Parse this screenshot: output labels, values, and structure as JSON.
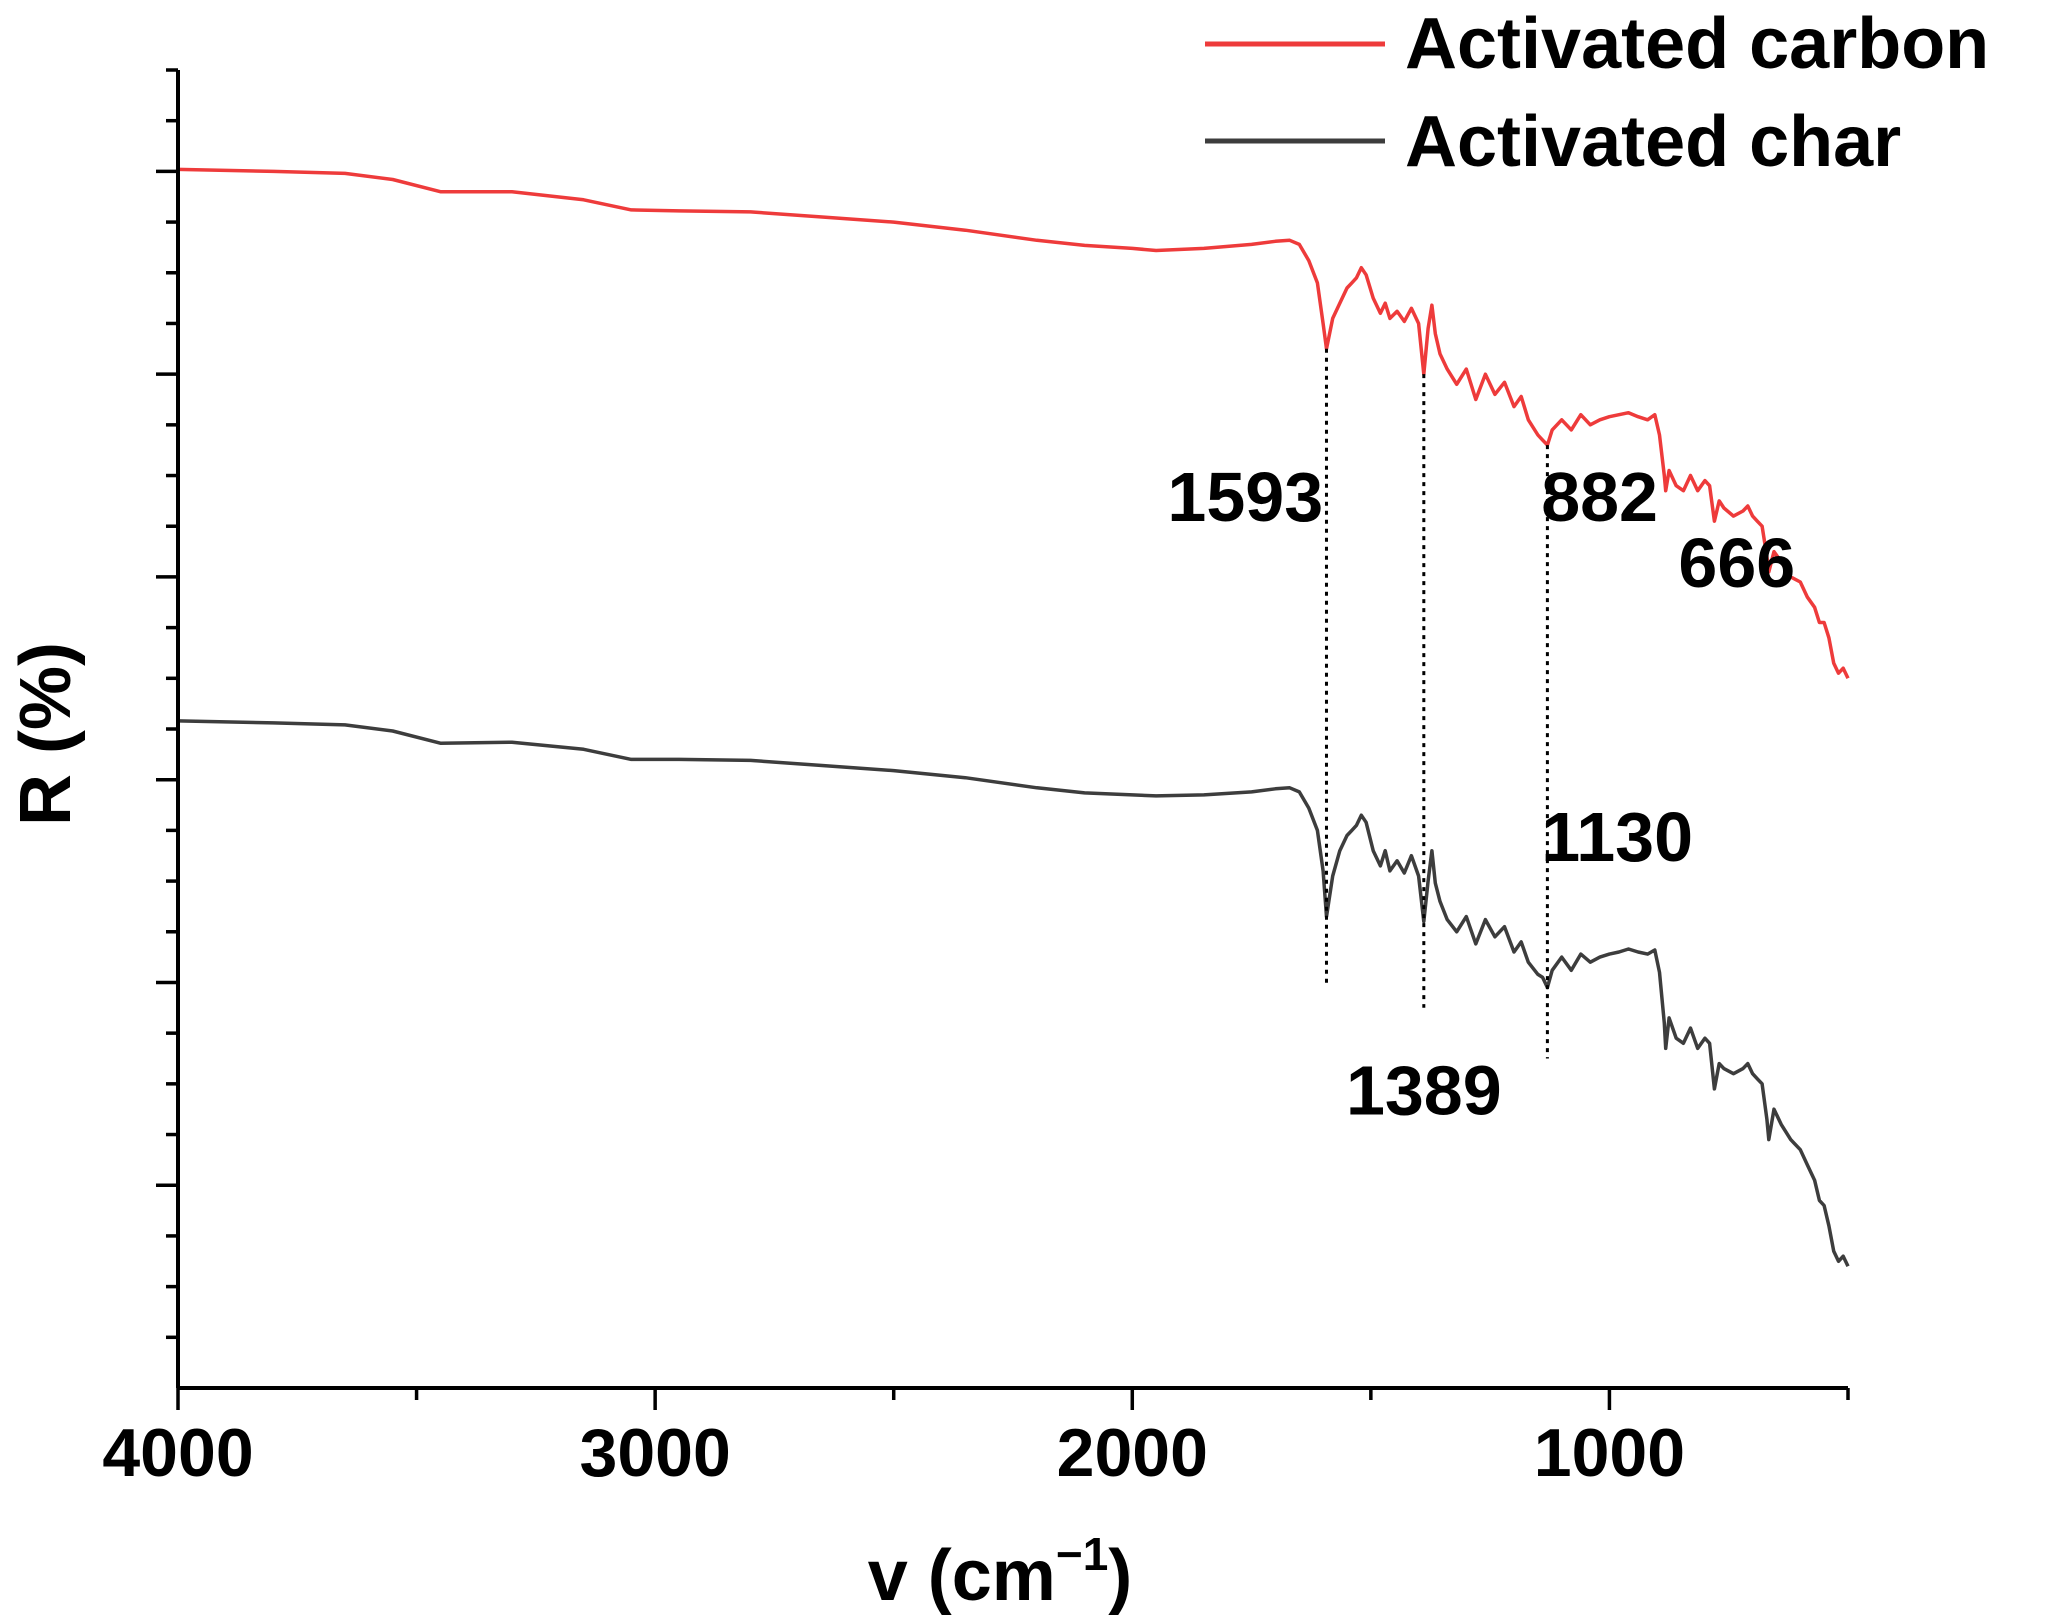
{
  "chart_data": {
    "type": "line",
    "title": "",
    "xlabel": "v (cm",
    "xlabel_sup": "−1",
    "xlabel_close": ")",
    "ylabel": "R (%)",
    "xlim": [
      4000,
      500
    ],
    "ylim": [
      0,
      13
    ],
    "xticks": [
      4000,
      3000,
      2000,
      1000
    ],
    "y_tick_labels_visible": false,
    "grid": false,
    "legend": "top-right",
    "series": [
      {
        "name": "Activated carbon",
        "color": "#ee3b3b",
        "x": [
          4000,
          3800,
          3650,
          3550,
          3450,
          3300,
          3150,
          3050,
          2950,
          2800,
          2650,
          2500,
          2350,
          2200,
          2100,
          2000,
          1950,
          1850,
          1750,
          1700,
          1670,
          1650,
          1630,
          1612,
          1600,
          1593,
          1580,
          1565,
          1550,
          1540,
          1530,
          1520,
          1510,
          1495,
          1480,
          1470,
          1460,
          1445,
          1430,
          1415,
          1400,
          1389,
          1380,
          1372,
          1365,
          1355,
          1340,
          1320,
          1300,
          1280,
          1260,
          1240,
          1220,
          1200,
          1185,
          1170,
          1150,
          1140,
          1130,
          1120,
          1100,
          1080,
          1060,
          1040,
          1020,
          1000,
          980,
          960,
          940,
          920,
          905,
          895,
          885,
          882,
          875,
          860,
          845,
          830,
          815,
          800,
          790,
          780,
          770,
          760,
          740,
          720,
          710,
          700,
          690,
          680,
          670,
          666,
          655,
          640,
          620,
          600,
          585,
          570,
          560,
          550,
          540,
          530,
          520,
          510,
          500
        ],
        "y": [
          12.02,
          12.0,
          11.98,
          11.92,
          11.8,
          11.8,
          11.72,
          11.62,
          11.61,
          11.6,
          11.55,
          11.5,
          11.42,
          11.32,
          11.27,
          11.24,
          11.22,
          11.24,
          11.28,
          11.31,
          11.32,
          11.28,
          11.12,
          10.9,
          10.5,
          10.25,
          10.55,
          10.7,
          10.85,
          10.9,
          10.95,
          11.05,
          10.98,
          10.75,
          10.6,
          10.7,
          10.55,
          10.62,
          10.52,
          10.65,
          10.5,
          10.0,
          10.45,
          10.68,
          10.4,
          10.2,
          10.05,
          9.9,
          10.05,
          9.75,
          10.0,
          9.8,
          9.92,
          9.68,
          9.78,
          9.55,
          9.4,
          9.35,
          9.3,
          9.45,
          9.55,
          9.45,
          9.6,
          9.5,
          9.55,
          9.58,
          9.6,
          9.62,
          9.58,
          9.55,
          9.6,
          9.4,
          9.0,
          8.85,
          9.05,
          8.9,
          8.85,
          9.0,
          8.85,
          8.95,
          8.9,
          8.55,
          8.75,
          8.68,
          8.6,
          8.65,
          8.7,
          8.6,
          8.55,
          8.5,
          8.2,
          8.05,
          8.25,
          8.15,
          8.0,
          7.95,
          7.8,
          7.7,
          7.55,
          7.55,
          7.4,
          7.15,
          7.05,
          7.1,
          7.0
        ]
      },
      {
        "name": "Activated char",
        "color": "#3d3d3d",
        "x": [
          4000,
          3800,
          3650,
          3550,
          3450,
          3300,
          3150,
          3050,
          2950,
          2800,
          2650,
          2500,
          2350,
          2200,
          2100,
          2000,
          1950,
          1850,
          1750,
          1700,
          1670,
          1650,
          1630,
          1612,
          1600,
          1593,
          1580,
          1565,
          1550,
          1540,
          1530,
          1520,
          1510,
          1495,
          1480,
          1470,
          1460,
          1445,
          1430,
          1415,
          1400,
          1389,
          1380,
          1372,
          1365,
          1355,
          1340,
          1320,
          1300,
          1280,
          1260,
          1240,
          1220,
          1200,
          1185,
          1170,
          1150,
          1140,
          1130,
          1120,
          1100,
          1080,
          1060,
          1040,
          1020,
          1000,
          980,
          960,
          940,
          920,
          905,
          895,
          885,
          882,
          875,
          860,
          845,
          830,
          815,
          800,
          790,
          780,
          770,
          760,
          740,
          720,
          710,
          700,
          690,
          680,
          670,
          666,
          655,
          640,
          620,
          600,
          585,
          570,
          560,
          550,
          540,
          530,
          520,
          510,
          500
        ],
        "y": [
          6.58,
          6.56,
          6.54,
          6.48,
          6.36,
          6.37,
          6.3,
          6.2,
          6.2,
          6.19,
          6.14,
          6.09,
          6.02,
          5.92,
          5.87,
          5.85,
          5.84,
          5.85,
          5.88,
          5.91,
          5.92,
          5.88,
          5.72,
          5.5,
          5.1,
          4.65,
          5.05,
          5.3,
          5.45,
          5.5,
          5.55,
          5.65,
          5.58,
          5.3,
          5.15,
          5.3,
          5.1,
          5.2,
          5.08,
          5.25,
          5.05,
          4.6,
          5.0,
          5.3,
          4.98,
          4.8,
          4.62,
          4.5,
          4.65,
          4.38,
          4.62,
          4.45,
          4.55,
          4.3,
          4.4,
          4.2,
          4.08,
          4.05,
          3.95,
          4.12,
          4.25,
          4.12,
          4.28,
          4.2,
          4.25,
          4.28,
          4.3,
          4.33,
          4.3,
          4.28,
          4.32,
          4.1,
          3.6,
          3.35,
          3.65,
          3.45,
          3.4,
          3.55,
          3.35,
          3.45,
          3.4,
          2.95,
          3.2,
          3.15,
          3.1,
          3.15,
          3.2,
          3.1,
          3.05,
          3.0,
          2.65,
          2.45,
          2.75,
          2.6,
          2.45,
          2.35,
          2.2,
          2.05,
          1.85,
          1.8,
          1.6,
          1.35,
          1.25,
          1.3,
          1.2
        ]
      }
    ],
    "annotations": [
      {
        "label": "1593",
        "x": 1593,
        "y_top": 10.25,
        "y_bottom": 3.95,
        "text_x": 1600,
        "text_y": 8.55,
        "anchor": "end"
      },
      {
        "label": "1389",
        "x": 1389,
        "y_top": 10.0,
        "y_bottom": 3.75,
        "text_x": 1389,
        "text_y": 2.7,
        "anchor": "middle"
      },
      {
        "label": "1130",
        "x": 1130,
        "y_top": 9.3,
        "y_bottom": 3.25,
        "text_x": 1143,
        "text_y": 5.2,
        "anchor": "start"
      },
      {
        "label": "882",
        "x": 882,
        "text_x": 1143,
        "text_y": 8.55,
        "anchor": "start"
      },
      {
        "label": "666",
        "x": 666,
        "text_x": 733,
        "text_y": 7.9,
        "anchor": "middle"
      }
    ]
  }
}
